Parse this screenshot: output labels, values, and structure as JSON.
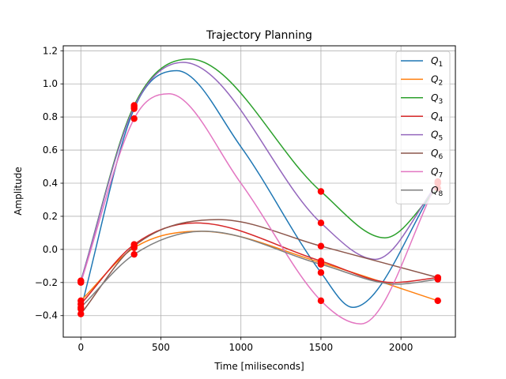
{
  "chart_data": {
    "type": "line",
    "title": "Trajectory Planning",
    "xlabel": "Time [miliseconds]",
    "ylabel": "Amplitude",
    "xlim": [
      -110,
      2340
    ],
    "ylim": [
      -0.53,
      1.23
    ],
    "xticks": [
      0,
      500,
      1000,
      1500,
      2000
    ],
    "yticks": [
      -0.4,
      -0.2,
      0.0,
      0.2,
      0.4,
      0.6,
      0.8,
      1.0,
      1.2
    ],
    "xtick_labels": [
      "0",
      "500",
      "1000",
      "1500",
      "2000"
    ],
    "ytick_labels": [
      "−0.4",
      "−0.2",
      "0.0",
      "0.2",
      "0.4",
      "0.6",
      "0.8",
      "1.0",
      "1.2"
    ],
    "grid": true,
    "legend_position": "top-right",
    "waypoint_times": [
      0,
      333,
      1500,
      2230
    ],
    "waypoint_color": "#ff0000",
    "series": [
      {
        "name": "Q",
        "sub": "1",
        "color": "#1f77b4",
        "waypoints": [
          -0.36,
          0.85,
          -0.14,
          0.4
        ],
        "points": [
          [
            0,
            -0.36
          ],
          [
            333,
            0.85
          ],
          [
            600,
            1.08
          ],
          [
            1000,
            0.62
          ],
          [
            1500,
            -0.14
          ],
          [
            1700,
            -0.35
          ],
          [
            2230,
            0.4
          ]
        ]
      },
      {
        "name": "Q",
        "sub": "2",
        "color": "#ff7f0e",
        "waypoints": [
          -0.31,
          0.01,
          -0.08,
          -0.31
        ],
        "points": [
          [
            0,
            -0.31
          ],
          [
            333,
            0.01
          ],
          [
            750,
            0.11
          ],
          [
            1500,
            -0.08
          ],
          [
            2230,
            -0.31
          ]
        ]
      },
      {
        "name": "Q",
        "sub": "3",
        "color": "#2ca02c",
        "waypoints": [
          -0.19,
          0.87,
          0.35,
          0.37
        ],
        "points": [
          [
            0,
            -0.19
          ],
          [
            333,
            0.87
          ],
          [
            680,
            1.15
          ],
          [
            1500,
            0.35
          ],
          [
            1900,
            0.07
          ],
          [
            2230,
            0.37
          ]
        ]
      },
      {
        "name": "Q",
        "sub": "4",
        "color": "#d62728",
        "waypoints": [
          -0.33,
          0.03,
          -0.07,
          -0.17
        ],
        "points": [
          [
            0,
            -0.33
          ],
          [
            333,
            0.03
          ],
          [
            720,
            0.16
          ],
          [
            1500,
            -0.07
          ],
          [
            1950,
            -0.2
          ],
          [
            2230,
            -0.17
          ]
        ]
      },
      {
        "name": "Q",
        "sub": "5",
        "color": "#9467bd",
        "waypoints": [
          -0.19,
          0.86,
          0.16,
          0.4
        ],
        "points": [
          [
            0,
            -0.19
          ],
          [
            333,
            0.86
          ],
          [
            640,
            1.13
          ],
          [
            1500,
            0.16
          ],
          [
            1840,
            -0.06
          ],
          [
            2230,
            0.4
          ]
        ]
      },
      {
        "name": "Q",
        "sub": "6",
        "color": "#8c564b",
        "waypoints": [
          -0.39,
          0.02,
          0.02,
          -0.17
        ],
        "points": [
          [
            0,
            -0.39
          ],
          [
            333,
            0.02
          ],
          [
            860,
            0.18
          ],
          [
            1500,
            0.02
          ],
          [
            2230,
            -0.17
          ]
        ]
      },
      {
        "name": "Q",
        "sub": "7",
        "color": "#e377c2",
        "waypoints": [
          -0.2,
          0.79,
          -0.31,
          0.41
        ],
        "points": [
          [
            0,
            -0.2
          ],
          [
            333,
            0.79
          ],
          [
            550,
            0.94
          ],
          [
            1000,
            0.4
          ],
          [
            1500,
            -0.31
          ],
          [
            1750,
            -0.45
          ],
          [
            2230,
            0.41
          ]
        ]
      },
      {
        "name": "Q",
        "sub": "8",
        "color": "#7f7f7f",
        "waypoints": [
          -0.35,
          -0.03,
          -0.09,
          -0.18
        ],
        "points": [
          [
            0,
            -0.35
          ],
          [
            333,
            -0.03
          ],
          [
            770,
            0.11
          ],
          [
            1500,
            -0.09
          ],
          [
            1980,
            -0.21
          ],
          [
            2230,
            -0.18
          ]
        ]
      }
    ]
  }
}
